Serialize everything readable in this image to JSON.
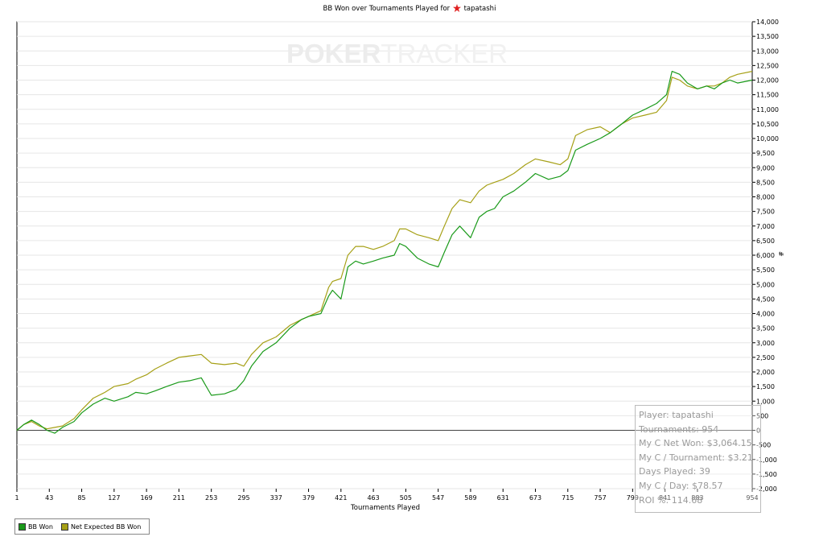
{
  "chart_data": {
    "type": "line",
    "title_prefix": "BB Won over Tournaments Played for",
    "title_player": "tapatashi",
    "xlabel": "Tournaments Played",
    "ylabel": "#",
    "xlim": [
      1,
      954
    ],
    "ylim": [
      -2000,
      14000
    ],
    "x_ticks": [
      1,
      43,
      85,
      127,
      169,
      211,
      253,
      295,
      337,
      379,
      421,
      463,
      505,
      547,
      589,
      631,
      673,
      715,
      757,
      799,
      841,
      883,
      954
    ],
    "x_tick_labels": [
      "1",
      "43",
      "85",
      "127",
      "169",
      "211",
      "253",
      "295",
      "337",
      "379",
      "421",
      "463",
      "505",
      "547",
      "589",
      "631",
      "673",
      "715",
      "757",
      "799",
      "841",
      "883",
      "954"
    ],
    "y_ticks": [
      -2000,
      -1500,
      -1000,
      -500,
      0,
      500,
      1000,
      1500,
      2000,
      2500,
      3000,
      3500,
      4000,
      4500,
      5000,
      5500,
      6000,
      6500,
      7000,
      7500,
      8000,
      8500,
      9000,
      9500,
      10000,
      10500,
      11000,
      11500,
      12000,
      12500,
      13000,
      13500,
      14000
    ],
    "y_tick_labels": [
      "-2,000",
      "-1,500",
      "-1,000",
      "-500",
      "0",
      "500",
      "1,000",
      "1,500",
      "2,000",
      "2,500",
      "3,000",
      "3,500",
      "4,000",
      "4,500",
      "5,000",
      "5,500",
      "6,000",
      "6,500",
      "7,000",
      "7,500",
      "8,000",
      "8,500",
      "9,000",
      "9,500",
      "10,000",
      "10,500",
      "11,000",
      "11,500",
      "12,000",
      "12,500",
      "13,000",
      "13,500",
      "14,000"
    ],
    "grid": true,
    "legend_position": "bottom-left",
    "series": [
      {
        "name": "BB Won",
        "color": "#1a9a1a",
        "x": [
          1,
          10,
          20,
          30,
          40,
          50,
          60,
          75,
          85,
          100,
          115,
          127,
          145,
          155,
          169,
          180,
          195,
          211,
          225,
          240,
          253,
          270,
          285,
          295,
          305,
          320,
          337,
          355,
          370,
          379,
          395,
          405,
          410,
          421,
          430,
          440,
          450,
          463,
          475,
          490,
          497,
          505,
          520,
          535,
          547,
          555,
          565,
          575,
          589,
          600,
          610,
          620,
          631,
          645,
          660,
          673,
          690,
          705,
          715,
          725,
          740,
          757,
          770,
          785,
          799,
          815,
          830,
          843,
          850,
          860,
          870,
          883,
          895,
          905,
          915,
          925,
          935,
          954
        ],
        "y": [
          0,
          200,
          350,
          200,
          0,
          -100,
          100,
          300,
          600,
          900,
          1100,
          1000,
          1150,
          1300,
          1250,
          1350,
          1500,
          1650,
          1700,
          1800,
          1200,
          1250,
          1400,
          1700,
          2200,
          2700,
          3000,
          3500,
          3800,
          3900,
          4000,
          4600,
          4800,
          4500,
          5600,
          5800,
          5700,
          5800,
          5900,
          6000,
          6400,
          6300,
          5900,
          5700,
          5600,
          6100,
          6700,
          7000,
          6600,
          7300,
          7500,
          7600,
          8000,
          8200,
          8500,
          8800,
          8600,
          8700,
          8900,
          9600,
          9800,
          10000,
          10200,
          10500,
          10800,
          11000,
          11200,
          11500,
          12300,
          12200,
          11900,
          11700,
          11800,
          11700,
          11900,
          12000,
          11900,
          12000
        ]
      },
      {
        "name": "Net Expected BB Won",
        "color": "#a6a016",
        "x": [
          1,
          10,
          20,
          30,
          40,
          50,
          60,
          75,
          85,
          100,
          115,
          127,
          145,
          155,
          169,
          180,
          195,
          211,
          225,
          240,
          253,
          270,
          285,
          295,
          305,
          320,
          337,
          355,
          370,
          379,
          395,
          405,
          410,
          421,
          430,
          440,
          450,
          463,
          475,
          490,
          497,
          505,
          520,
          535,
          547,
          555,
          565,
          575,
          589,
          600,
          610,
          620,
          631,
          645,
          660,
          673,
          690,
          705,
          715,
          725,
          740,
          757,
          770,
          785,
          799,
          815,
          830,
          843,
          850,
          860,
          870,
          883,
          895,
          905,
          915,
          925,
          935,
          954
        ],
        "y": [
          0,
          200,
          300,
          150,
          50,
          100,
          150,
          400,
          700,
          1100,
          1300,
          1500,
          1600,
          1750,
          1900,
          2100,
          2300,
          2500,
          2550,
          2600,
          2300,
          2250,
          2300,
          2200,
          2600,
          3000,
          3200,
          3600,
          3800,
          3900,
          4100,
          4900,
          5100,
          5200,
          6000,
          6300,
          6300,
          6200,
          6300,
          6500,
          6900,
          6900,
          6700,
          6600,
          6500,
          7000,
          7600,
          7900,
          7800,
          8200,
          8400,
          8500,
          8600,
          8800,
          9100,
          9300,
          9200,
          9100,
          9300,
          10100,
          10300,
          10400,
          10200,
          10500,
          10700,
          10800,
          10900,
          11300,
          12100,
          12000,
          11800,
          11700,
          11800,
          11800,
          11900,
          12100,
          12200,
          12300
        ]
      }
    ]
  },
  "stats": {
    "player": "Player: tapatashi",
    "tournaments": "Tournaments: 954",
    "net_won": "My C Net Won: $3,064.15",
    "per_tournament": "My C / Tournament: $3.21",
    "days_played": "Days Played: 39",
    "per_day": "My C / Day: $78.57",
    "roi": "ROI %: 114.68"
  },
  "watermark": {
    "bold": "POKER",
    "light": "TRACKER"
  }
}
